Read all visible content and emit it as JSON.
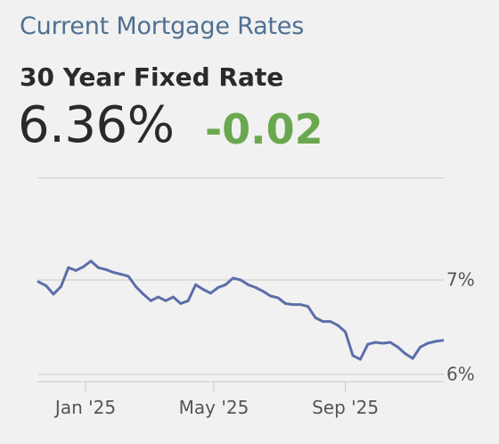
{
  "header": {
    "title": "Current Mortgage Rates",
    "subtitle": "30 Year Fixed Rate",
    "rate": "6.36%",
    "change": "-0.02",
    "change_color": "#6aa84f"
  },
  "chart_data": {
    "type": "line",
    "title": "",
    "xlabel": "",
    "ylabel": "",
    "x_ticks": [
      "Jan '25",
      "May '25",
      "Sep '25"
    ],
    "y_ticks": [
      6,
      7
    ],
    "y_tick_labels": [
      "6%",
      "7%"
    ],
    "ylim": [
      5.95,
      7.4
    ],
    "xlim": [
      "2024-11-17",
      "2025-12-02"
    ],
    "grid": "horizontal",
    "line_color": "#5b6ea8",
    "series": [
      {
        "x": [
          "2024-11-18",
          "2024-11-25",
          "2024-12-02",
          "2024-12-09",
          "2024-12-16",
          "2024-12-23",
          "2024-12-30",
          "2025-01-06",
          "2025-01-13",
          "2025-01-20",
          "2025-01-27",
          "2025-02-03",
          "2025-02-10",
          "2025-02-17",
          "2025-02-24",
          "2025-03-03",
          "2025-03-10",
          "2025-03-17",
          "2025-03-24",
          "2025-03-31",
          "2025-04-07",
          "2025-04-14",
          "2025-04-21",
          "2025-04-28",
          "2025-05-05",
          "2025-05-12",
          "2025-05-19",
          "2025-05-26",
          "2025-06-02",
          "2025-06-09",
          "2025-06-16",
          "2025-06-23",
          "2025-06-30",
          "2025-07-07",
          "2025-07-14",
          "2025-07-21",
          "2025-07-28",
          "2025-08-04",
          "2025-08-11",
          "2025-08-18",
          "2025-08-25",
          "2025-09-01",
          "2025-09-08",
          "2025-09-15",
          "2025-09-22",
          "2025-09-29",
          "2025-10-06",
          "2025-10-13",
          "2025-10-20",
          "2025-10-27",
          "2025-11-03",
          "2025-11-10",
          "2025-11-17",
          "2025-11-24",
          "2025-12-01"
        ],
        "values": [
          6.98,
          6.94,
          6.85,
          6.93,
          7.13,
          7.1,
          7.14,
          7.2,
          7.13,
          7.11,
          7.08,
          7.06,
          7.04,
          6.93,
          6.85,
          6.78,
          6.82,
          6.78,
          6.82,
          6.75,
          6.78,
          6.95,
          6.9,
          6.86,
          6.92,
          6.95,
          7.02,
          7.0,
          6.95,
          6.92,
          6.88,
          6.83,
          6.81,
          6.75,
          6.74,
          6.74,
          6.72,
          6.6,
          6.56,
          6.56,
          6.52,
          6.45,
          6.2,
          6.16,
          6.32,
          6.34,
          6.33,
          6.34,
          6.29,
          6.22,
          6.17,
          6.29,
          6.33,
          6.35,
          6.36
        ]
      }
    ]
  }
}
